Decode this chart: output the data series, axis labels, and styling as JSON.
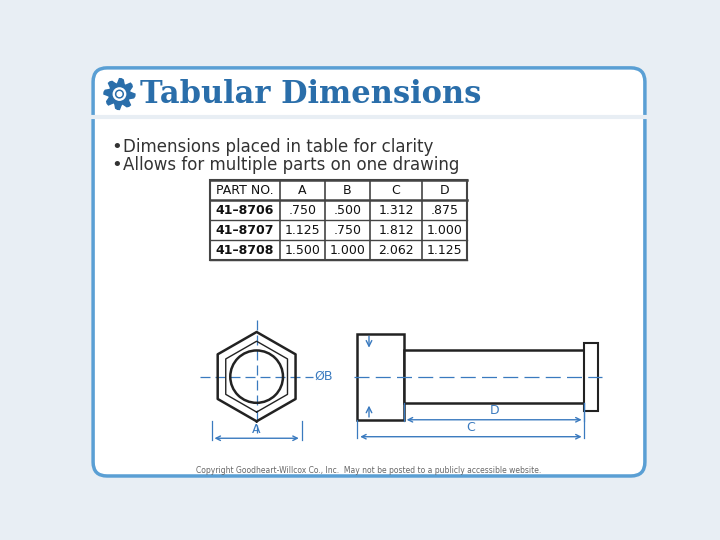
{
  "title": "Tabular Dimensions",
  "bullet1": "Dimensions placed in table for clarity",
  "bullet2": "Allows for multiple parts on one drawing",
  "bg_color": "#ffffff",
  "title_color": "#2a6eaa",
  "gear_color": "#2a6eaa",
  "table_headers": [
    "PART NO.",
    "A",
    "B",
    "C",
    "D"
  ],
  "table_rows": [
    [
      "41–8706",
      ".750",
      ".500",
      "1.312",
      ".875"
    ],
    [
      "41–8707",
      "1.125",
      ".750",
      "1.812",
      "1.000"
    ],
    [
      "41–8708",
      "1.500",
      "1.000",
      "2.062",
      "1.125"
    ]
  ],
  "copyright": "Copyright Goodheart-Willcox Co., Inc.  May not be posted to a publicly accessible website.",
  "border_color": "#5a9fd4",
  "diagram_color": "#222222",
  "dim_color": "#3a7abf",
  "slide_bg": "#e8eef4"
}
